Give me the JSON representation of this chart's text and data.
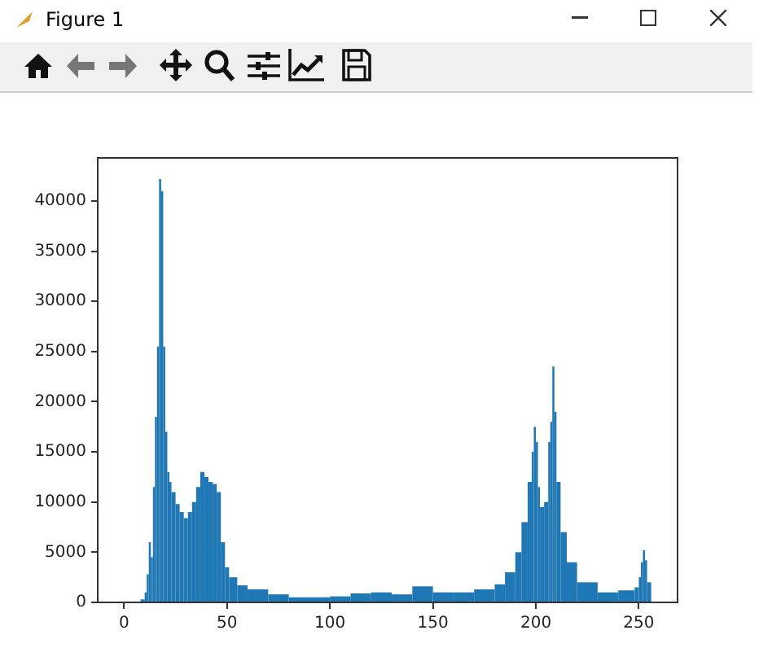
{
  "chart_data": {
    "type": "histogram",
    "annotations": [
      "Figure 1"
    ],
    "color": "#1f77b4",
    "bins": [
      8,
      10,
      11,
      12,
      13,
      14,
      15,
      16,
      17,
      18,
      19,
      20,
      21,
      22,
      23,
      25,
      27,
      29,
      31,
      33,
      35,
      37,
      39,
      41,
      43,
      45,
      47,
      49,
      51,
      55,
      60,
      70,
      80,
      100,
      110,
      120,
      130,
      140,
      150,
      160,
      170,
      180,
      185,
      190,
      193,
      196,
      198,
      199,
      200,
      201,
      202,
      204,
      206,
      207,
      208,
      209,
      210,
      212,
      215,
      220,
      230,
      240,
      248,
      250,
      251,
      252,
      253,
      254,
      256
    ],
    "values": [
      300,
      1000,
      2800,
      6000,
      4500,
      11500,
      18500,
      25500,
      42200,
      41000,
      25500,
      17000,
      13000,
      12000,
      11000,
      9800,
      9000,
      8400,
      9000,
      10000,
      11500,
      13000,
      12500,
      12000,
      11800,
      11000,
      6000,
      3500,
      2500,
      1700,
      1300,
      800,
      500,
      600,
      900,
      1000,
      800,
      1600,
      1000,
      1000,
      1300,
      1800,
      3000,
      5000,
      8000,
      12000,
      15000,
      17500,
      16000,
      11500,
      9500,
      10000,
      16000,
      18000,
      23500,
      19000,
      12000,
      7000,
      4000,
      2000,
      1000,
      1200,
      1500,
      2500,
      4000,
      5200,
      4200,
      2000
    ],
    "xlim": [
      -12.8,
      268.8
    ],
    "ylim": [
      0,
      44300
    ],
    "xticks": [
      0,
      50,
      100,
      150,
      200,
      250
    ],
    "yticks": [
      0,
      5000,
      10000,
      15000,
      20000,
      25000,
      30000,
      35000,
      40000
    ],
    "grid": false,
    "legend": false
  }
}
